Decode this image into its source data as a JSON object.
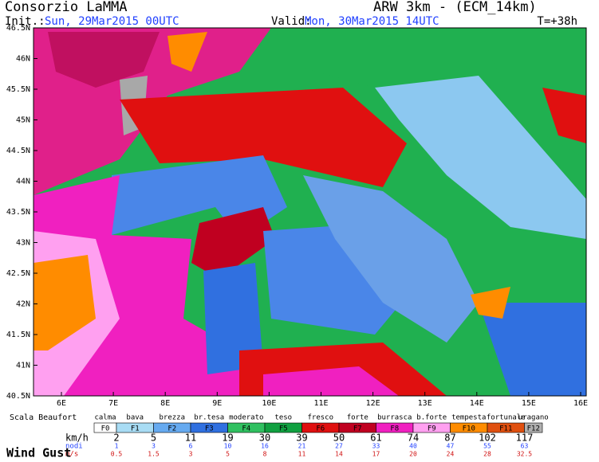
{
  "header": {
    "title": "Consorzio LaMMA",
    "model": "ARW 3km - (ECM_14km)",
    "init_label": "Init.:",
    "init_value": "Sun, 29Mar2015 00UTC",
    "valid_label": "Valid:",
    "valid_value": "Mon, 30Mar2015 14UTC",
    "lead_time": "T=+38h"
  },
  "map": {
    "lat_labels": [
      "46.5N",
      "46N",
      "45.5N",
      "45N",
      "44.5N",
      "44N",
      "43.5N",
      "43N",
      "42.5N",
      "42N",
      "41.5N",
      "41N",
      "40.5N"
    ],
    "lon_labels": [
      "6E",
      "7E",
      "8E",
      "9E",
      "10E",
      "11E",
      "12E",
      "13E",
      "14E",
      "15E",
      "16E"
    ]
  },
  "legend": {
    "scale_label": "Scala Beaufort",
    "names": [
      "calma",
      "bava",
      "brezza",
      "br.tesa",
      "moderato",
      "teso",
      "fresco",
      "forte",
      "burrasca",
      "b.forte",
      "tempesta",
      "fortunale",
      "uragano"
    ],
    "codes": [
      "F0",
      "F1",
      "F2",
      "F3",
      "F4",
      "F5",
      "F6",
      "F7",
      "F8",
      "F9",
      "F10",
      "F11",
      "F12"
    ],
    "kmh_label": "km/h",
    "kmh": [
      "2",
      "5",
      "11",
      "19",
      "30",
      "39",
      "50",
      "61",
      "74",
      "87",
      "102",
      "117"
    ],
    "knots_label": "nodi",
    "knots": [
      "1",
      "3",
      "6",
      "10",
      "16",
      "21",
      "27",
      "33",
      "40",
      "47",
      "55",
      "63"
    ],
    "ms_label": "m/s",
    "ms": [
      "0.5",
      "1.5",
      "3",
      "5",
      "8",
      "11",
      "14",
      "17",
      "20",
      "24",
      "28",
      "32.5"
    ],
    "field_label": "Wind Gust"
  }
}
